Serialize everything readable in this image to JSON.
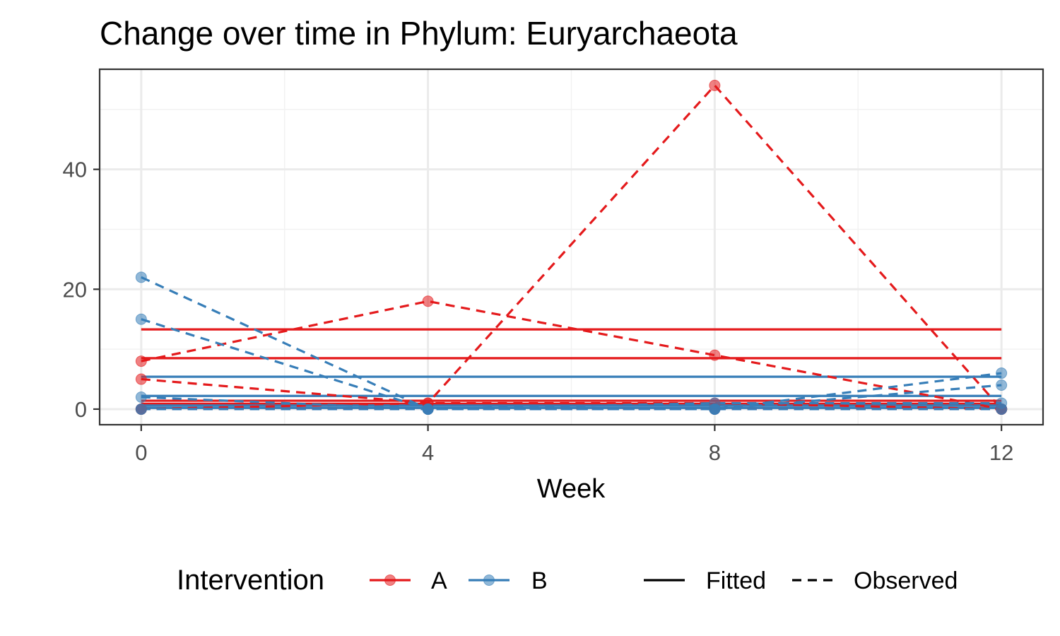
{
  "chart_data": {
    "type": "line",
    "title": "Change over time in Phylum: Euryarchaeota",
    "xlabel": "Week",
    "ylabel": "",
    "x_ticks": [
      0,
      4,
      8,
      12
    ],
    "y_ticks": [
      0,
      20,
      40
    ],
    "xlim": [
      -0.58,
      12.58
    ],
    "ylim": [
      -2.6,
      56.7
    ],
    "grid": true,
    "legend_position": "bottom",
    "legend": {
      "color_title": "Intervention",
      "color_entries": [
        {
          "label": "A",
          "color": "#e41a1c"
        },
        {
          "label": "B",
          "color": "#377eb8"
        }
      ],
      "linetype_entries": [
        {
          "label": "Fitted",
          "dash": "solid"
        },
        {
          "label": "Observed",
          "dash": "dashed"
        }
      ]
    },
    "x": [
      0,
      4,
      8,
      12
    ],
    "observed_series": [
      {
        "group": "A",
        "values": [
          8,
          18,
          9,
          0
        ]
      },
      {
        "group": "A",
        "values": [
          0,
          1,
          54,
          0
        ]
      },
      {
        "group": "A",
        "values": [
          5,
          1,
          1,
          0
        ]
      },
      {
        "group": "A",
        "values": [
          0,
          0,
          0,
          0
        ]
      },
      {
        "group": "A",
        "values": [
          0,
          0,
          0,
          0
        ]
      },
      {
        "group": "B",
        "values": [
          22,
          0,
          0,
          6
        ]
      },
      {
        "group": "B",
        "values": [
          15,
          0,
          0,
          4
        ]
      },
      {
        "group": "B",
        "values": [
          2,
          0,
          1,
          1
        ]
      },
      {
        "group": "B",
        "values": [
          0,
          0,
          0,
          0
        ]
      },
      {
        "group": "B",
        "values": [
          0,
          0,
          0,
          0
        ]
      }
    ],
    "fitted_series": [
      {
        "group": "A",
        "value": 13.3
      },
      {
        "group": "A",
        "value": 8.5
      },
      {
        "group": "A",
        "value": 1.4
      },
      {
        "group": "A",
        "value": 0.9
      },
      {
        "group": "B",
        "value": 5.4
      },
      {
        "group": "B",
        "value": 2.2
      },
      {
        "group": "B",
        "value": 0.6
      },
      {
        "group": "B",
        "value": 0.2
      }
    ]
  }
}
